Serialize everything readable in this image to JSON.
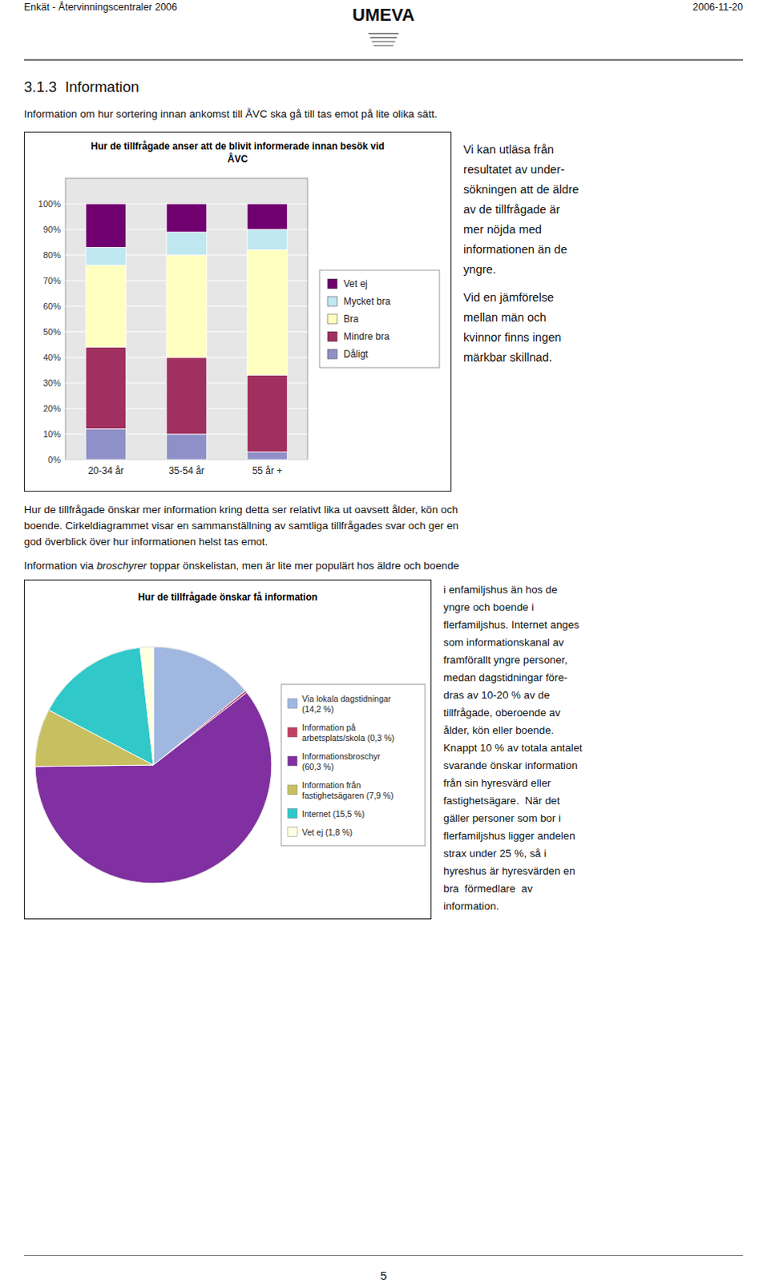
{
  "page": {
    "header_left": "Enkät - Återvinningscentraler 2006",
    "logo": "UMEVA",
    "header_right": "2006-11-20",
    "section_title": "3.1.3  Information",
    "intro_text": "Information om hur sortering innan ankomst till ÅVC ska gå till tas emot på lite olika sätt.",
    "right_text_1": "Vi kan utläsa från\nresultatet av under-\nsökningen att de äldre\nav de tillfrågade är\nmer nöjda med\ninformationen än de\nyngre.",
    "right_text_2": "Vid en jämförelse\nmellan män och\nkvinnor finns ingen\nmärkbar skillnad.",
    "between_text": [
      "Hur de tillfrågade önskar mer information kring detta ser relativt lika ut oavsett ålder, kön och",
      "boende. Cirkeldiagrammet visar en sammanställning av samtliga tillfrågades svar och ger en",
      "god överblick över hur informationen helst tas emot."
    ],
    "info_intro": [
      "Information via ",
      "broschyrer",
      " toppar önskelistan, men är lite mer populärt hos äldre och boende"
    ],
    "right_text_pie_lines": [
      "i enfamiljshus än hos de",
      "yngre och boende i",
      "flerfamiljshus. Internet anges",
      "som informationskanal av",
      "framförallt yngre personer,",
      "medan dagstidningar före-",
      "dras av 10-20 % av de",
      "tillfrågade, oberoende av",
      "ålder, kön eller boende.",
      "Knappt 10 % av totala antalet",
      "svarande önskar information",
      "från sin hyresvärd eller",
      "fastighetsägare.  När det",
      "gäller personer som bor i",
      "flerfamiljshus ligger andelen",
      "strax under 25 %, så i",
      "hyreshus är hyresvärden en",
      "bra  förmedlare  av",
      "information."
    ],
    "footer_page": "5"
  },
  "chart_data": [
    {
      "type": "bar",
      "stacked": true,
      "title": "Hur de tillfrågade anser att de blivit informerade innan besök vid\nÅVC",
      "categories": [
        "20-34 år",
        "35-54 år",
        "55 år +"
      ],
      "series": [
        {
          "name": "Dåligt",
          "color": "#9090c8",
          "values": [
            12,
            10,
            3
          ]
        },
        {
          "name": "Mindre bra",
          "color": "#a03060",
          "values": [
            32,
            30,
            30
          ]
        },
        {
          "name": "Bra",
          "color": "#ffffc0",
          "values": [
            32,
            40,
            49
          ]
        },
        {
          "name": "Mycket bra",
          "color": "#c0e8f0",
          "values": [
            7,
            9,
            8
          ]
        },
        {
          "name": "Vet ej",
          "color": "#700070",
          "values": [
            17,
            11,
            10
          ]
        }
      ],
      "ylim": [
        0,
        110
      ],
      "yticks": [
        {
          "value": 0,
          "label": "0%"
        },
        {
          "value": 10,
          "label": "10%"
        },
        {
          "value": 20,
          "label": "20%"
        },
        {
          "value": 30,
          "label": "30%"
        },
        {
          "value": 40,
          "label": "40%"
        },
        {
          "value": 50,
          "label": "50%"
        },
        {
          "value": 60,
          "label": "60%"
        },
        {
          "value": 70,
          "label": "70%"
        },
        {
          "value": 80,
          "label": "80%"
        },
        {
          "value": 90,
          "label": "90%"
        },
        {
          "value": 100,
          "label": "100%"
        }
      ],
      "grid": true,
      "legend": "right"
    },
    {
      "type": "pie",
      "title": "Hur de tillfrågade önskar få information",
      "categories": [
        "Via lokala dagstidningar\n(14,2 %)",
        "Information på\narbetsplats/skola (0,3 %)",
        "Informationsbroschyr\n(60,3 %)",
        "Information från\nfastighetsägaren (7,9 %)",
        "Internet (15,5 %)",
        "Vet ej (1,8 %)"
      ],
      "values": [
        14.2,
        0.3,
        60.3,
        7.9,
        15.5,
        1.8
      ],
      "colors": [
        "#a0b8e0",
        "#c04060",
        "#8030a0",
        "#c8c060",
        "#30c8c8",
        "#ffffe0"
      ],
      "legend": "right"
    }
  ]
}
